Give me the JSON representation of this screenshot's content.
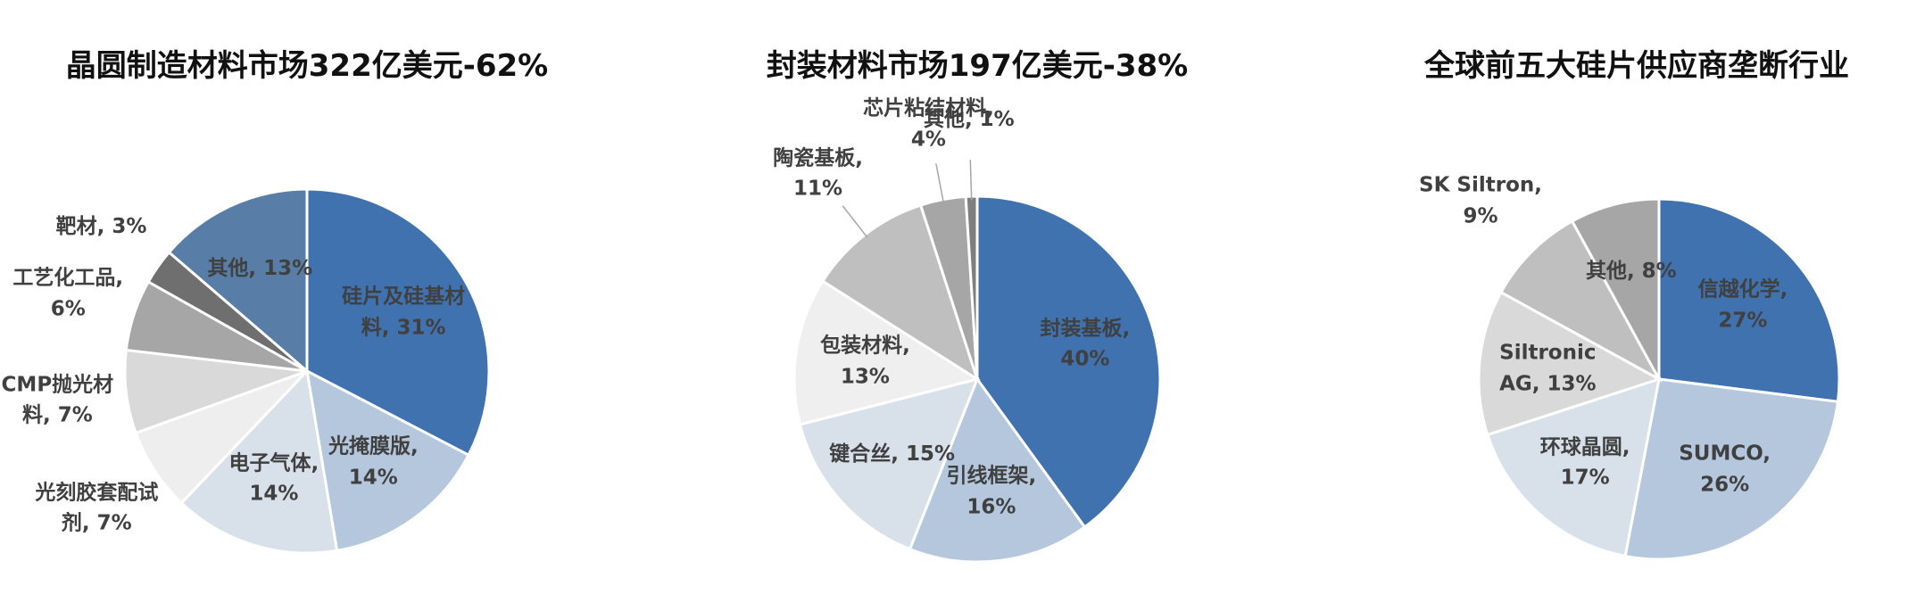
{
  "chart_data": [
    {
      "type": "pie",
      "title": "晶圆制造材料市场322亿美元-62%",
      "values": [
        31,
        14,
        14,
        7,
        7,
        6,
        3,
        13
      ],
      "value_labels": [
        "硅片及硅基材料, 31%",
        "光掩膜版, 14%",
        "电子气体, 14%",
        "光刻胶套配试剂, 7%",
        "CMP抛光材料, 7%",
        "工艺化工品, 6%",
        "靶材, 3%",
        "其他, 13%"
      ],
      "colors": [
        "#3f72af",
        "#b4c7dc",
        "#d8e0ea",
        "#eeeeee",
        "#d9d9d9",
        "#a6a6a6",
        "#6f6f6f",
        "#587ea8"
      ]
    },
    {
      "type": "pie",
      "title": "封装材料市场197亿美元-38%",
      "values": [
        40,
        16,
        15,
        13,
        11,
        4,
        1
      ],
      "value_labels": [
        "封装基板, 40%",
        "引线框架, 16%",
        "键合丝, 15%",
        "包装材料, 13%",
        "陶瓷基板, 11%",
        "芯片粘结材料, 4%",
        "其他, 1%"
      ],
      "colors": [
        "#3f72af",
        "#b4c7dc",
        "#d8e0ea",
        "#efefef",
        "#bfbfbf",
        "#a6a6a6",
        "#7f7f7f"
      ]
    },
    {
      "type": "pie",
      "title": "全球前五大硅片供应商垄断行业",
      "values": [
        27,
        26,
        17,
        13,
        9,
        8
      ],
      "value_labels": [
        "信越化学, 27%",
        "SUMCO, 26%",
        "环球晶圆, 17%",
        "Siltronic AG, 13%",
        "SK Siltron, 9%",
        "其他, 8%"
      ],
      "colors": [
        "#3f72af",
        "#b4c7dc",
        "#d8e0ea",
        "#d9d9d9",
        "#bfbfbf",
        "#a6a6a6"
      ]
    }
  ]
}
